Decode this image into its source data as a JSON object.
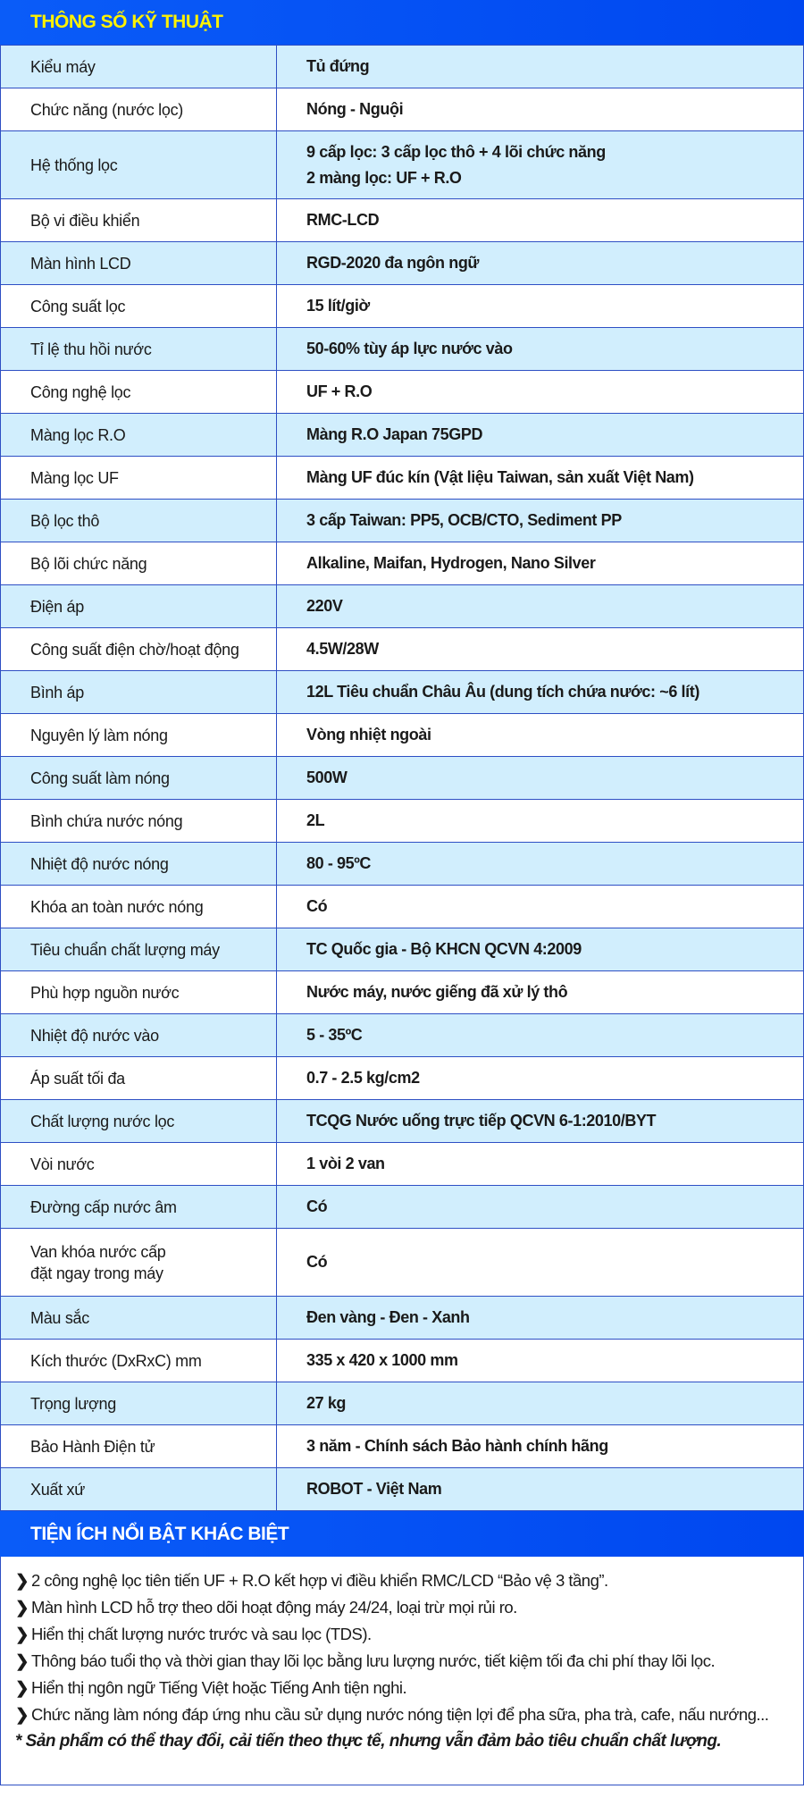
{
  "specs_title": "THÔNG SỐ KỸ THUẬT",
  "specs": [
    {
      "label": "Kiểu máy",
      "value": "Tủ đứng"
    },
    {
      "label": "Chức năng (nước lọc)",
      "value": "Nóng - Nguội"
    },
    {
      "label": "Hệ thống lọc",
      "value": "9 cấp lọc: 3 cấp lọc thô + 4 lõi chức năng",
      "value2": "2 màng lọc: UF + R.O"
    },
    {
      "label": "Bộ vi điều khiển",
      "value": "RMC-LCD"
    },
    {
      "label": "Màn hình LCD",
      "value": "RGD-2020 đa ngôn ngữ"
    },
    {
      "label": "Công suất lọc",
      "value": "15 lít/giờ"
    },
    {
      "label": "Tỉ lệ thu hồi nước",
      "value": "50-60% tùy áp lực nước vào"
    },
    {
      "label": "Công nghệ lọc",
      "value": "UF + R.O"
    },
    {
      "label": "Màng lọc R.O",
      "value": "Màng R.O Japan 75GPD"
    },
    {
      "label": "Màng lọc UF",
      "value": "Màng UF đúc kín (Vật liệu Taiwan, sản xuất Việt Nam)"
    },
    {
      "label": "Bộ lọc thô",
      "value": "3 cấp Taiwan: PP5, OCB/CTO, Sediment PP"
    },
    {
      "label": "Bộ lõi chức năng",
      "value": "Alkaline, Maifan, Hydrogen, Nano Silver"
    },
    {
      "label": "Điện áp",
      "value": "220V"
    },
    {
      "label": "Công suất điện chờ/hoạt động",
      "value": "4.5W/28W"
    },
    {
      "label": "Bình áp",
      "value": "12L Tiêu chuẩn Châu Âu (dung tích chứa nước: ~6 lít)"
    },
    {
      "label": "Nguyên lý làm nóng",
      "value": "Vòng nhiệt ngoài"
    },
    {
      "label": "Công suất làm nóng",
      "value": "500W"
    },
    {
      "label": "Bình chứa nước nóng",
      "value": "2L"
    },
    {
      "label": "Nhiệt độ nước nóng",
      "value": "80 - 95ºC"
    },
    {
      "label": "Khóa an toàn nước nóng",
      "value": "Có"
    },
    {
      "label": "Tiêu chuẩn chất lượng máy",
      "value": "TC Quốc gia - Bộ KHCN QCVN 4:2009"
    },
    {
      "label": "Phù hợp nguồn nước",
      "value": "Nước máy, nước giếng đã xử lý thô"
    },
    {
      "label": "Nhiệt độ nước vào",
      "value": "5 - 35ºC"
    },
    {
      "label": "Áp suất tối đa",
      "value": "0.7 - 2.5 kg/cm2"
    },
    {
      "label": "Chất lượng nước lọc",
      "value": "TCQG Nước uống trực tiếp QCVN 6-1:2010/BYT"
    },
    {
      "label": "Vòi nước",
      "value": "1 vòi 2 van"
    },
    {
      "label": "Đường cấp nước âm",
      "value": "Có"
    },
    {
      "label": "Van khóa nước cấp",
      "label2": "đặt ngay trong máy",
      "value": "Có"
    },
    {
      "label": "Màu sắc",
      "value": "Đen vàng - Đen - Xanh"
    },
    {
      "label": "Kích thước (DxRxC) mm",
      "value": "335 x 420 x 1000 mm"
    },
    {
      "label": "Trọng lượng",
      "value": "27 kg"
    },
    {
      "label": "Bảo Hành Điện tử",
      "value": "3 năm - Chính sách Bảo hành chính hãng"
    },
    {
      "label": "Xuất xứ",
      "value": "ROBOT - Việt Nam"
    }
  ],
  "features_title": "TIỆN ÍCH NỔI BẬT KHÁC BIỆT",
  "features": [
    "2 công nghệ lọc tiên tiến UF + R.O kết hợp vi điều khiển RMC/LCD “Bảo vệ 3 tầng”.",
    "Màn hình LCD hỗ trợ theo dõi hoạt động máy 24/24, loại trừ mọi rủi ro.",
    "Hiển thị chất lượng nước trước và sau lọc (TDS).",
    "Thông báo tuổi thọ và thời gian thay lõi lọc bằng lưu lượng nước, tiết kiệm tối đa chi phí thay lõi lọc.",
    "Hiển thị ngôn ngữ Tiếng Việt hoặc Tiếng Anh tiện nghi.",
    "Chức năng làm nóng đáp ứng nhu cầu sử dụng nước nóng tiện lợi để pha sữa, pha trà, cafe, nấu nướng..."
  ],
  "bullet_icon": "chevron-right-icon",
  "note": "* Sản phẩm có thể thay đổi, cải tiến theo thực tế, nhưng vẫn đảm bảo tiêu chuẩn chất lượng.",
  "colors": {
    "header_blue": "#0a5cf8",
    "title_yellow": "#fff200",
    "row_alt": "#d1eefd",
    "border": "#2e4fc4"
  }
}
